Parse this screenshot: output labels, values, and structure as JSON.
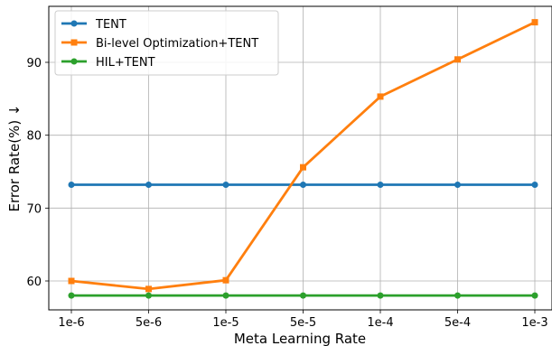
{
  "chart_data": {
    "type": "line",
    "categories": [
      "1e-6",
      "5e-6",
      "1e-5",
      "5e-5",
      "1e-4",
      "5e-4",
      "1e-3"
    ],
    "xlabel": "Meta Learning Rate",
    "ylabel": "Error Rate(%) ↓",
    "y_ticks": [
      60,
      70,
      80,
      90
    ],
    "grid": true,
    "legend_position": "top-left",
    "series": [
      {
        "name": "TENT",
        "color": "#1f77b4",
        "marker": "circle",
        "values": [
          73.2,
          73.2,
          73.2,
          73.2,
          73.2,
          73.2,
          73.2
        ]
      },
      {
        "name": "Bi-level Optimization+TENT",
        "color": "#ff7f0e",
        "marker": "square",
        "values": [
          60.0,
          58.9,
          60.1,
          75.6,
          85.3,
          90.4,
          95.5
        ]
      },
      {
        "name": "HIL+TENT",
        "color": "#2ca02c",
        "marker": "circle",
        "values": [
          58.0,
          58.0,
          58.0,
          58.0,
          58.0,
          58.0,
          58.0
        ]
      }
    ]
  }
}
